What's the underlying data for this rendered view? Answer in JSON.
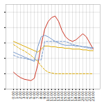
{
  "chart_data": {
    "type": "line",
    "categories": [
      "0:00",
      "1:00",
      "2:00",
      "3:00",
      "4:00",
      "5:00",
      "6:00",
      "7:00",
      "8:00",
      "9:00",
      "10:00",
      "11:00",
      "12:00",
      "13:00",
      "14:00",
      "15:00",
      "16:00",
      "17:00",
      "18:00",
      "19:00",
      "20:00",
      "21:00",
      "22:00",
      "23:00"
    ],
    "series": [
      {
        "color": "#cc3322",
        "line_style": "solid",
        "values": [
          22,
          18,
          15,
          13,
          12,
          11,
          14,
          32,
          58,
          78,
          88,
          93,
          95,
          88,
          76,
          68,
          64,
          62,
          64,
          68,
          72,
          68,
          60,
          52
        ]
      },
      {
        "color": "#ddaa00",
        "line_style": "solid",
        "values": [
          62,
          60,
          58,
          56,
          54,
          52,
          50,
          48,
          52,
          56,
          56,
          55,
          55,
          54,
          54,
          53,
          53,
          52,
          52,
          52,
          51,
          51,
          50,
          50
        ]
      },
      {
        "color": "#ddaa00",
        "line_style": "dashed",
        "values": [
          58,
          55,
          52,
          50,
          47,
          44,
          40,
          36,
          30,
          25,
          22,
          21,
          20,
          20,
          20,
          20,
          20,
          20,
          20,
          20,
          20,
          20,
          20,
          20
        ]
      },
      {
        "color": "#7799cc",
        "line_style": "solid",
        "values": [
          48,
          46,
          44,
          42,
          40,
          38,
          36,
          55,
          68,
          70,
          68,
          65,
          62,
          60,
          58,
          57,
          57,
          57,
          56,
          56,
          55,
          55,
          54,
          54
        ]
      },
      {
        "color": "#7799cc",
        "line_style": "dashed",
        "values": [
          44,
          42,
          41,
          40,
          39,
          38,
          38,
          38,
          38,
          62,
          62,
          62,
          62,
          62,
          62,
          62,
          60,
          58,
          57,
          56,
          55,
          54,
          53,
          52
        ]
      }
    ],
    "ylim": [
      0,
      110
    ],
    "yticks": [
      0,
      20,
      40,
      60,
      80,
      100
    ],
    "grid": true,
    "tick_labels": "x"
  }
}
